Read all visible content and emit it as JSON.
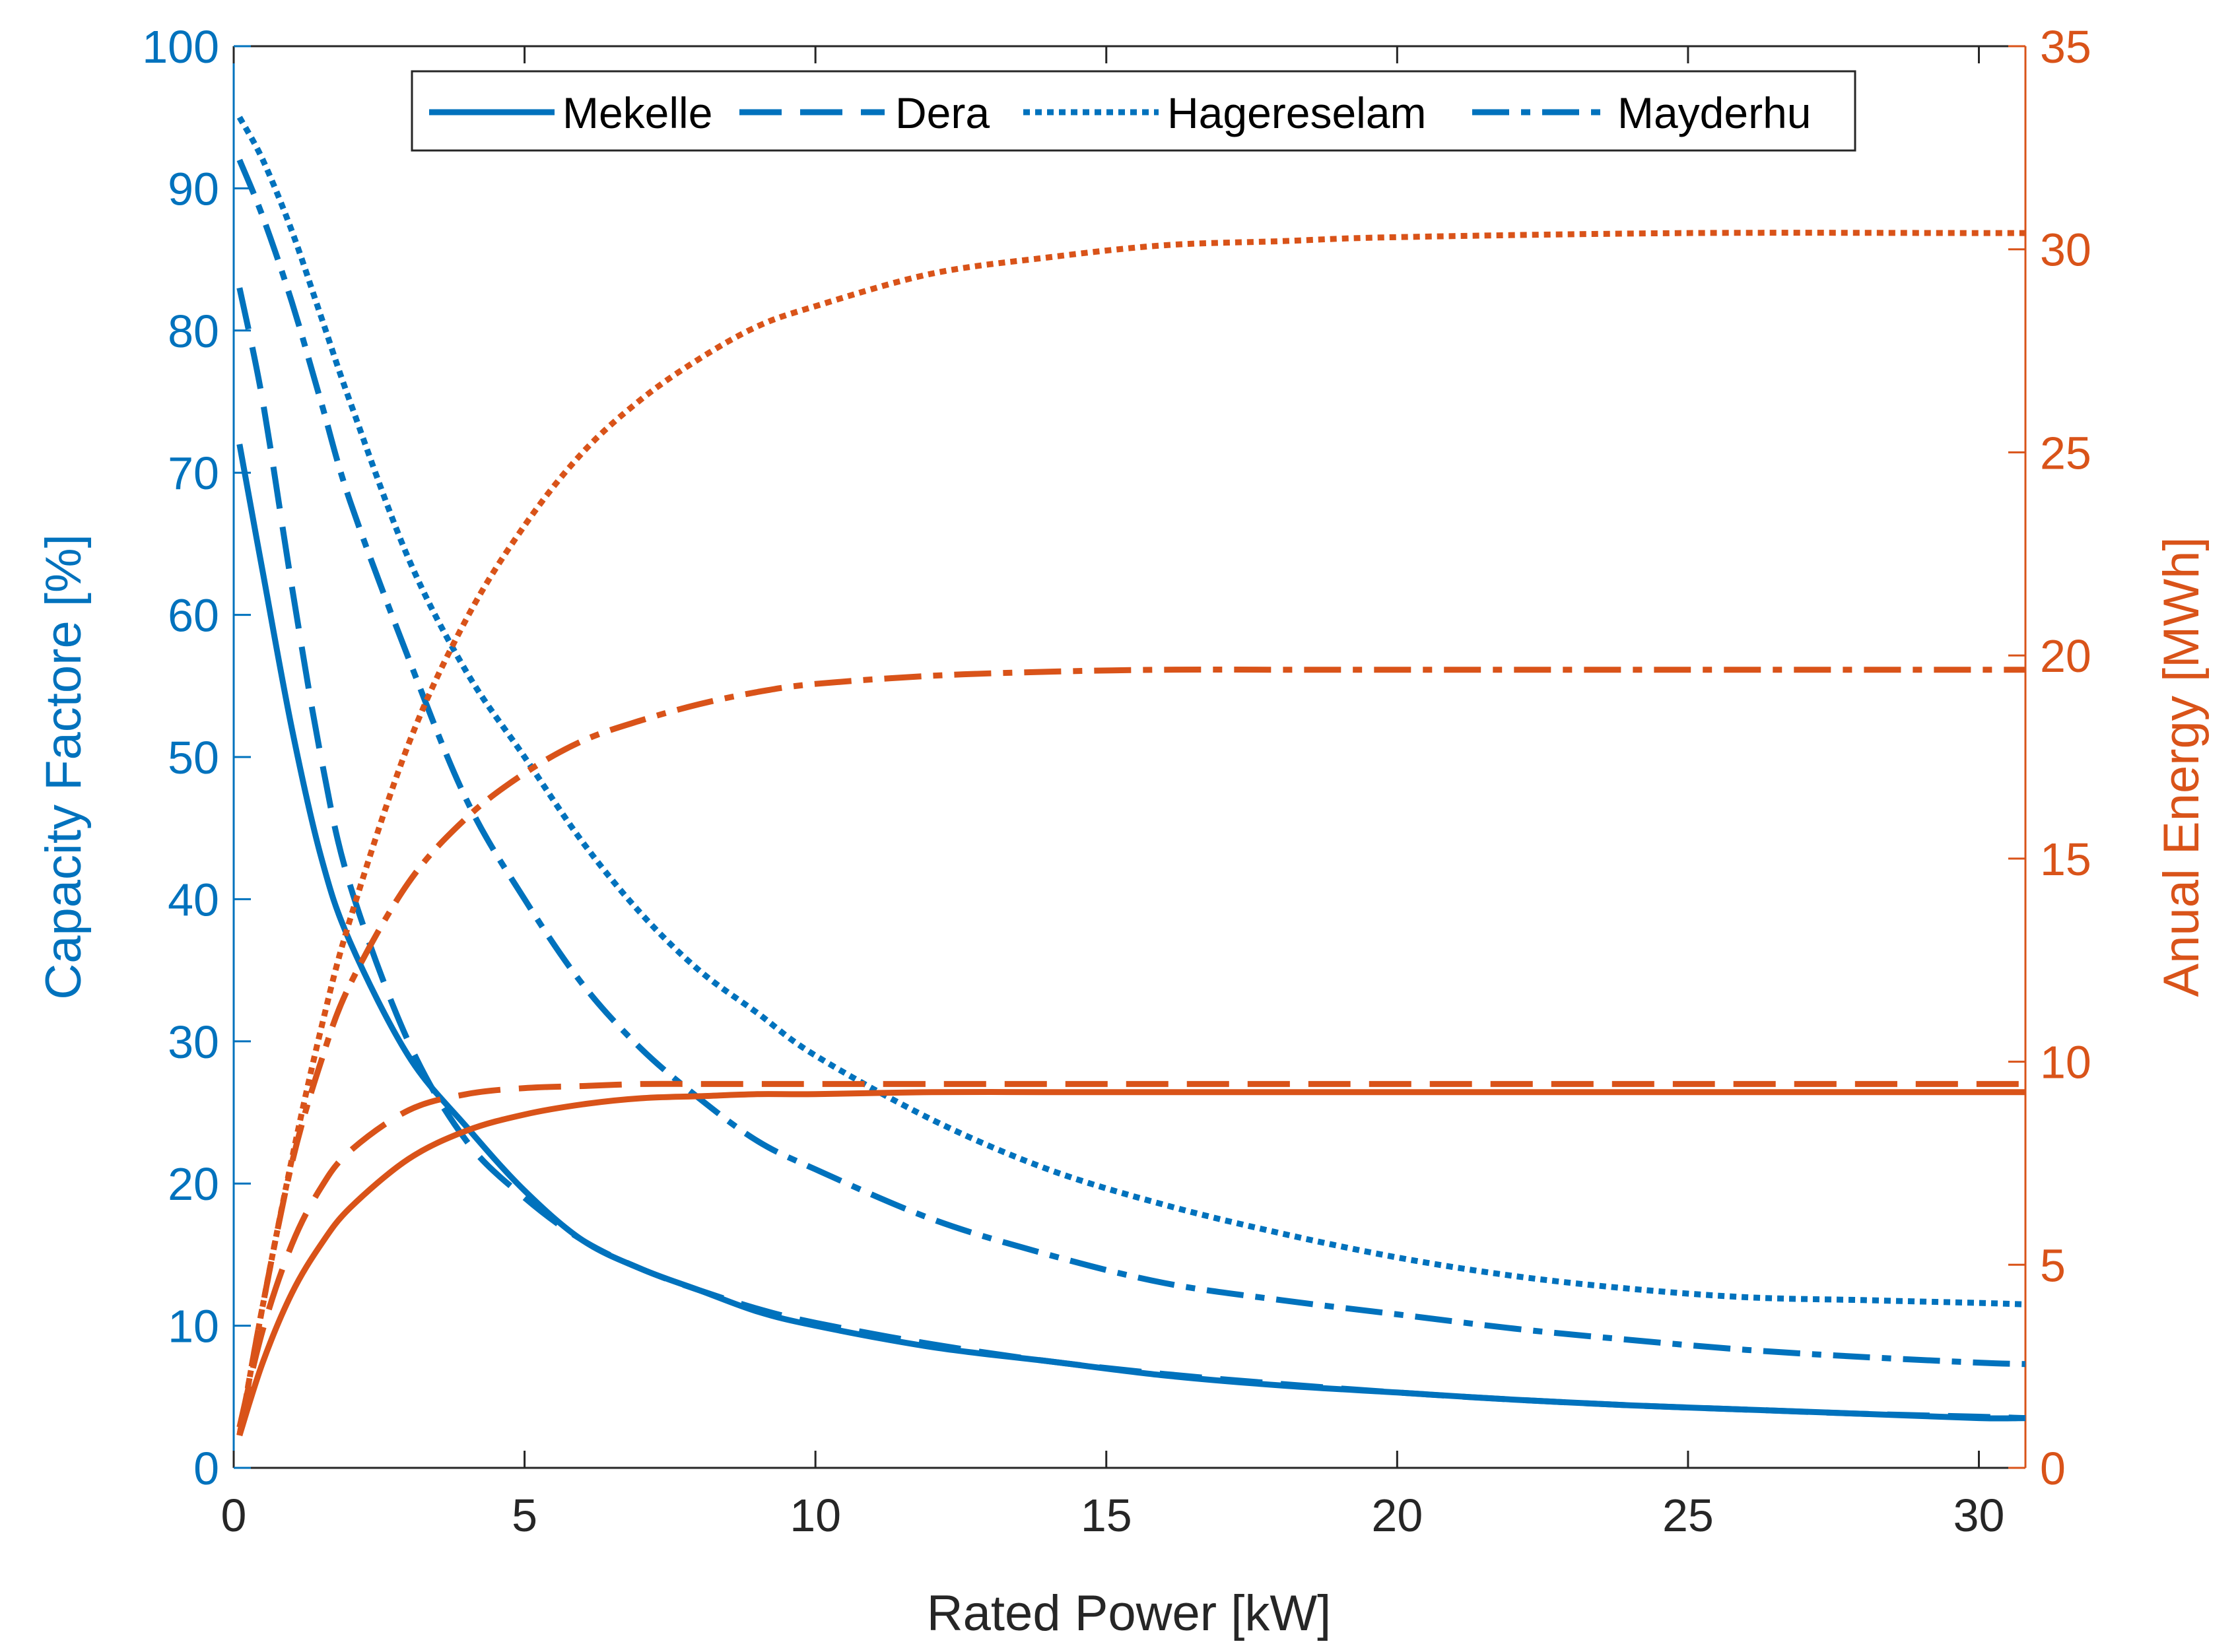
{
  "chart_data": {
    "type": "line",
    "xlabel": "Rated Power [kW]",
    "ylabel_left": "Capacity Factore [%]",
    "ylabel_right": "Anual Energy [MWh]",
    "xlim": [
      0,
      30.8
    ],
    "ylim_left": [
      0,
      100
    ],
    "ylim_right": [
      0,
      35
    ],
    "x_ticks": [
      0,
      5,
      10,
      15,
      20,
      25,
      30
    ],
    "y_left_ticks": [
      0,
      10,
      20,
      30,
      40,
      50,
      60,
      70,
      80,
      90,
      100
    ],
    "y_right_ticks": [
      0,
      5,
      10,
      15,
      20,
      25,
      30,
      35
    ],
    "legend": {
      "position": "top",
      "entries": [
        "Mekelle",
        "Dera",
        "Hagereselam",
        "Mayderhu"
      ]
    },
    "colors": {
      "left_axis": "#0072BD",
      "right_axis": "#D95319"
    },
    "series": [
      {
        "name": "Mekelle",
        "axis": "left",
        "style": "solid",
        "x": [
          0.1,
          0.5,
          1,
          1.5,
          2,
          3,
          4,
          5,
          6,
          7,
          8,
          9,
          10,
          12,
          14,
          16,
          18,
          20,
          22,
          24,
          26,
          28,
          30,
          30.8
        ],
        "values": [
          72,
          63,
          52,
          43,
          37,
          29,
          24,
          19.5,
          16,
          14,
          12.5,
          11,
          10,
          8.5,
          7.5,
          6.5,
          5.8,
          5.3,
          4.8,
          4.4,
          4.1,
          3.8,
          3.5,
          3.5
        ]
      },
      {
        "name": "Dera",
        "axis": "left",
        "style": "dashed",
        "x": [
          0.1,
          0.5,
          1,
          1.5,
          2,
          3,
          4,
          5,
          6,
          7,
          8,
          9,
          10,
          12,
          14,
          16,
          18,
          20,
          22,
          24,
          26,
          28,
          30,
          30.8
        ],
        "values": [
          83,
          75,
          62,
          50,
          41,
          30,
          23,
          19,
          16,
          14,
          12.5,
          11.2,
          10.2,
          8.7,
          7.5,
          6.6,
          5.9,
          5.3,
          4.8,
          4.4,
          4.1,
          3.8,
          3.6,
          3.5
        ]
      },
      {
        "name": "Hagereselam",
        "axis": "left",
        "style": "dotted",
        "x": [
          0.1,
          0.5,
          1,
          1.5,
          2,
          3,
          4,
          5,
          6,
          7,
          8,
          9,
          10,
          12,
          14,
          16,
          18,
          20,
          22,
          24,
          26,
          28,
          30,
          30.8
        ],
        "values": [
          95,
          92,
          87,
          81,
          75,
          64,
          56,
          50,
          44,
          39,
          35,
          32,
          29,
          24.5,
          21,
          18.5,
          16.5,
          14.8,
          13.5,
          12.6,
          12,
          11.8,
          11.6,
          11.5
        ]
      },
      {
        "name": "Mayderhu",
        "axis": "left",
        "style": "dashdot",
        "x": [
          0.1,
          0.5,
          1,
          1.5,
          2,
          3,
          4,
          5,
          6,
          7,
          8,
          9,
          10,
          12,
          14,
          16,
          18,
          20,
          22,
          24,
          26,
          28,
          30,
          30.8
        ],
        "values": [
          92,
          88,
          82,
          75,
          68,
          57,
          47,
          40,
          34,
          29.5,
          26,
          23,
          21,
          17.5,
          15,
          13,
          11.8,
          10.8,
          9.8,
          9,
          8.3,
          7.8,
          7.4,
          7.3
        ]
      },
      {
        "name": "Mekelle",
        "axis": "right",
        "style": "solid",
        "x": [
          0.1,
          0.5,
          1,
          1.5,
          2,
          3,
          4,
          5,
          6,
          7,
          8,
          9,
          10,
          12,
          14,
          16,
          18,
          20,
          25,
          30,
          30.8
        ],
        "values": [
          0.8,
          2.6,
          4.3,
          5.5,
          6.4,
          7.6,
          8.3,
          8.7,
          8.95,
          9.1,
          9.15,
          9.2,
          9.2,
          9.25,
          9.25,
          9.25,
          9.25,
          9.25,
          9.25,
          9.25,
          9.25
        ]
      },
      {
        "name": "Dera",
        "axis": "right",
        "style": "dashed",
        "x": [
          0.1,
          0.5,
          1,
          1.5,
          2,
          3,
          4,
          5,
          6,
          7,
          8,
          9,
          10,
          12,
          14,
          16,
          18,
          20,
          25,
          30,
          30.8
        ],
        "values": [
          1.0,
          3.4,
          5.5,
          6.9,
          7.8,
          8.8,
          9.2,
          9.35,
          9.4,
          9.45,
          9.45,
          9.45,
          9.45,
          9.45,
          9.45,
          9.45,
          9.45,
          9.45,
          9.45,
          9.45,
          9.45
        ]
      },
      {
        "name": "Hagereselam",
        "axis": "right",
        "style": "dotted",
        "x": [
          0.1,
          0.5,
          1,
          1.5,
          2,
          3,
          4,
          5,
          6,
          7,
          8,
          9,
          10,
          12,
          14,
          16,
          18,
          20,
          25,
          30,
          30.8
        ],
        "values": [
          0.8,
          4,
          7.6,
          10.8,
          13.5,
          17.8,
          20.9,
          23.2,
          25,
          26.3,
          27.3,
          28.1,
          28.6,
          29.4,
          29.8,
          30.1,
          30.2,
          30.3,
          30.4,
          30.4,
          30.4
        ]
      },
      {
        "name": "Mayderhu",
        "axis": "right",
        "style": "dashdot",
        "x": [
          0.1,
          0.5,
          1,
          1.5,
          2,
          3,
          4,
          5,
          6,
          7,
          8,
          9,
          10,
          12,
          14,
          16,
          18,
          20,
          25,
          30,
          30.8
        ],
        "values": [
          0.8,
          4,
          7.5,
          10,
          11.9,
          14.4,
          16,
          17.1,
          17.9,
          18.4,
          18.8,
          19.1,
          19.3,
          19.5,
          19.6,
          19.65,
          19.65,
          19.65,
          19.65,
          19.65,
          19.65
        ]
      }
    ]
  }
}
